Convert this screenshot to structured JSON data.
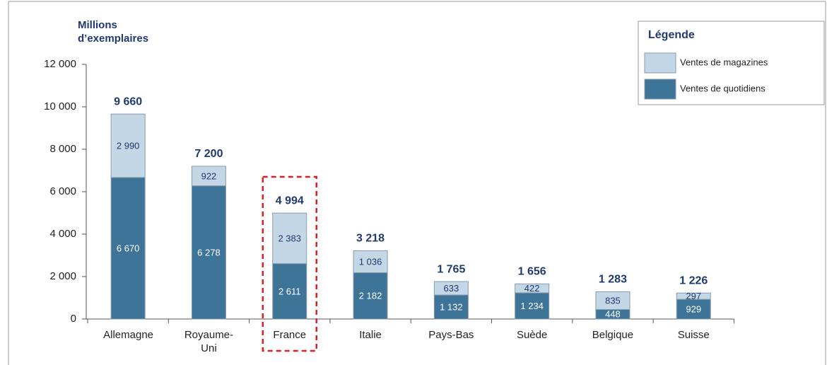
{
  "chart_data": {
    "type": "stacked_bar",
    "ylabel": "Millions d’exemplaires",
    "legend_title": "Légende",
    "categories": [
      "Allemagne",
      "Royaume-Uni",
      "France",
      "Italie",
      "Pays-Bas",
      "Suède",
      "Belgique",
      "Suisse"
    ],
    "series": [
      {
        "name": "Ventes de quotidiens",
        "color": "#3f7499",
        "values": [
          6670,
          6278,
          2611,
          2182,
          1132,
          1234,
          448,
          929
        ],
        "value_labels": [
          "6 670",
          "6 278",
          "2 611",
          "2 182",
          "1 132",
          "1 234",
          "448",
          "929"
        ]
      },
      {
        "name": "Ventes de magazines",
        "color": "#c3d7e6",
        "values": [
          2990,
          922,
          2383,
          1036,
          633,
          422,
          835,
          297
        ],
        "value_labels": [
          "2 990",
          "922",
          "2 383",
          "1 036",
          "633",
          "422",
          "835",
          "297"
        ]
      }
    ],
    "totals": {
      "values": [
        9660,
        7200,
        4994,
        3218,
        1765,
        1656,
        1283,
        1226
      ],
      "value_labels": [
        "9 660",
        "7 200",
        "4 994",
        "3 218",
        "1 765",
        "1 656",
        "1 283",
        "1 226"
      ]
    },
    "highlight": "France",
    "ylim": [
      0,
      12000
    ],
    "yticks": [
      0,
      {
        "value": 2000,
        "label": "2 000"
      },
      {
        "value": 4000,
        "label": "4 000"
      },
      {
        "value": 6000,
        "label": "6 000"
      },
      {
        "value": 8000,
        "label": "8 000"
      },
      {
        "value": 10000,
        "label": "10 000"
      },
      {
        "value": 12000,
        "label": "12 000"
      }
    ]
  }
}
